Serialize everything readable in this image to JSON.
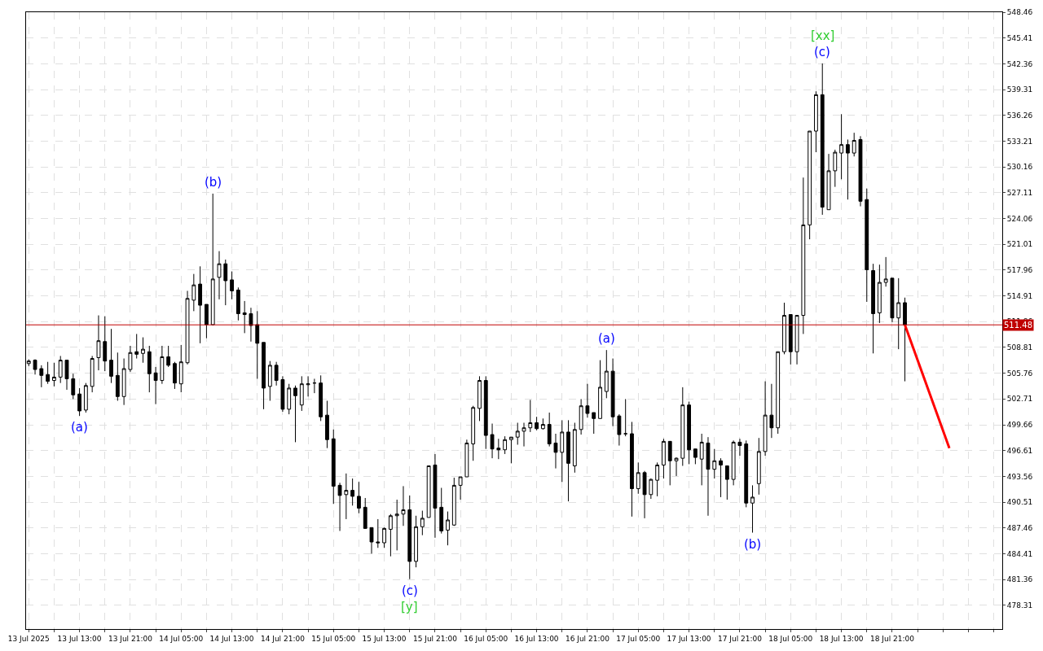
{
  "chart_data": {
    "type": "candlestick",
    "x": [
      "2025-07-13T05:00",
      "2025-07-13T06:00",
      "2025-07-13T07:00",
      "2025-07-13T08:00",
      "2025-07-13T09:00",
      "2025-07-13T10:00",
      "2025-07-13T11:00",
      "2025-07-13T12:00",
      "2025-07-13T13:00",
      "2025-07-13T14:00",
      "2025-07-13T15:00",
      "2025-07-13T16:00",
      "2025-07-13T17:00",
      "2025-07-13T18:00",
      "2025-07-13T19:00",
      "2025-07-13T20:00",
      "2025-07-13T21:00",
      "2025-07-13T22:00",
      "2025-07-13T23:00",
      "2025-07-14T00:00",
      "2025-07-14T01:00",
      "2025-07-14T02:00",
      "2025-07-14T03:00",
      "2025-07-14T04:00",
      "2025-07-14T05:00",
      "2025-07-14T06:00",
      "2025-07-14T07:00",
      "2025-07-14T08:00",
      "2025-07-14T09:00",
      "2025-07-14T10:00",
      "2025-07-14T11:00",
      "2025-07-14T12:00",
      "2025-07-14T13:00",
      "2025-07-14T14:00",
      "2025-07-14T15:00",
      "2025-07-14T16:00",
      "2025-07-14T17:00",
      "2025-07-14T18:00",
      "2025-07-14T19:00",
      "2025-07-14T20:00",
      "2025-07-14T21:00",
      "2025-07-14T22:00",
      "2025-07-14T23:00",
      "2025-07-15T00:00",
      "2025-07-15T01:00",
      "2025-07-15T02:00",
      "2025-07-15T03:00",
      "2025-07-15T04:00",
      "2025-07-15T05:00",
      "2025-07-15T06:00",
      "2025-07-15T07:00",
      "2025-07-15T08:00",
      "2025-07-15T09:00",
      "2025-07-15T10:00",
      "2025-07-15T11:00",
      "2025-07-15T12:00",
      "2025-07-15T13:00",
      "2025-07-15T14:00",
      "2025-07-15T15:00",
      "2025-07-15T16:00",
      "2025-07-15T17:00",
      "2025-07-15T18:00",
      "2025-07-15T19:00",
      "2025-07-15T20:00",
      "2025-07-15T21:00",
      "2025-07-15T22:00",
      "2025-07-15T23:00",
      "2025-07-16T00:00",
      "2025-07-16T01:00",
      "2025-07-16T02:00",
      "2025-07-16T03:00",
      "2025-07-16T04:00",
      "2025-07-16T05:00",
      "2025-07-16T06:00",
      "2025-07-16T07:00",
      "2025-07-16T08:00",
      "2025-07-16T09:00",
      "2025-07-16T10:00",
      "2025-07-16T11:00",
      "2025-07-16T12:00",
      "2025-07-16T13:00",
      "2025-07-16T14:00",
      "2025-07-16T15:00",
      "2025-07-16T16:00",
      "2025-07-16T17:00",
      "2025-07-16T18:00",
      "2025-07-16T19:00",
      "2025-07-16T20:00",
      "2025-07-16T21:00",
      "2025-07-16T22:00",
      "2025-07-16T23:00",
      "2025-07-17T00:00",
      "2025-07-17T01:00",
      "2025-07-17T02:00",
      "2025-07-17T03:00",
      "2025-07-17T04:00",
      "2025-07-17T05:00",
      "2025-07-17T06:00",
      "2025-07-17T07:00",
      "2025-07-17T08:00",
      "2025-07-17T09:00",
      "2025-07-17T10:00",
      "2025-07-17T11:00",
      "2025-07-17T12:00",
      "2025-07-17T13:00",
      "2025-07-17T14:00",
      "2025-07-17T15:00",
      "2025-07-17T16:00",
      "2025-07-17T17:00",
      "2025-07-17T18:00",
      "2025-07-17T19:00",
      "2025-07-17T20:00",
      "2025-07-17T21:00",
      "2025-07-17T22:00",
      "2025-07-17T23:00",
      "2025-07-18T00:00",
      "2025-07-18T01:00",
      "2025-07-18T02:00",
      "2025-07-18T03:00",
      "2025-07-18T04:00",
      "2025-07-18T05:00",
      "2025-07-18T06:00",
      "2025-07-18T07:00",
      "2025-07-18T08:00",
      "2025-07-18T09:00",
      "2025-07-18T10:00",
      "2025-07-18T11:00",
      "2025-07-18T12:00",
      "2025-07-18T13:00",
      "2025-07-18T14:00",
      "2025-07-18T15:00",
      "2025-07-18T16:00",
      "2025-07-18T17:00",
      "2025-07-18T18:00",
      "2025-07-18T19:00",
      "2025-07-18T20:00",
      "2025-07-18T21:00",
      "2025-07-18T22:00",
      "2025-07-18T23:00"
    ],
    "ohlc": [
      [
        506.9,
        507.4,
        506.6,
        507.2
      ],
      [
        507.3,
        507.4,
        505.6,
        506.2
      ],
      [
        506.3,
        506.7,
        504.1,
        505.5
      ],
      [
        505.6,
        507.1,
        504.5,
        504.8
      ],
      [
        504.9,
        507.0,
        504.2,
        505.3
      ],
      [
        505.3,
        507.8,
        504.6,
        507.3
      ],
      [
        507.3,
        507.3,
        503.8,
        505.1
      ],
      [
        505.1,
        505.7,
        502.7,
        503.2
      ],
      [
        503.3,
        504.0,
        500.7,
        501.3
      ],
      [
        501.4,
        504.6,
        501.1,
        504.3
      ],
      [
        504.2,
        507.8,
        503.5,
        507.5
      ],
      [
        507.6,
        512.6,
        506.1,
        509.6
      ],
      [
        509.5,
        512.5,
        506.0,
        507.2
      ],
      [
        507.3,
        511.0,
        504.6,
        505.4
      ],
      [
        505.5,
        508.2,
        502.5,
        503.0
      ],
      [
        503.0,
        507.5,
        502.0,
        506.3
      ],
      [
        506.2,
        509.0,
        505.9,
        508.2
      ],
      [
        508.3,
        510.4,
        507.5,
        508.0
      ],
      [
        508.1,
        510.0,
        507.0,
        508.6
      ],
      [
        508.3,
        509.0,
        503.5,
        505.7
      ],
      [
        505.8,
        506.5,
        502.1,
        504.9
      ],
      [
        504.9,
        509.0,
        504.5,
        507.7
      ],
      [
        507.7,
        509.0,
        506.5,
        506.7
      ],
      [
        506.9,
        507.1,
        503.9,
        504.6
      ],
      [
        504.5,
        509.1,
        503.5,
        507.1
      ],
      [
        507.0,
        515.5,
        506.8,
        514.6
      ],
      [
        514.4,
        517.5,
        513.1,
        516.2
      ],
      [
        516.3,
        518.4,
        509.3,
        513.8
      ],
      [
        513.9,
        513.9,
        509.9,
        511.5
      ],
      [
        511.5,
        527.0,
        511.4,
        516.9
      ],
      [
        517.1,
        520.2,
        514.5,
        518.7
      ],
      [
        518.7,
        519.2,
        513.8,
        516.7
      ],
      [
        516.8,
        517.8,
        514.5,
        515.5
      ],
      [
        515.6,
        515.9,
        512.0,
        512.8
      ],
      [
        512.9,
        514.3,
        510.5,
        512.7
      ],
      [
        512.8,
        513.5,
        509.5,
        511.4
      ],
      [
        511.5,
        513.1,
        505.1,
        509.3
      ],
      [
        509.4,
        509.4,
        501.5,
        504.0
      ],
      [
        504.2,
        507.2,
        502.5,
        506.7
      ],
      [
        506.7,
        507.1,
        504.3,
        504.9
      ],
      [
        505.0,
        505.4,
        501.2,
        501.5
      ],
      [
        501.5,
        504.5,
        500.9,
        504.0
      ],
      [
        504.0,
        504.3,
        497.6,
        503.1
      ],
      [
        502.0,
        505.4,
        501.3,
        504.5
      ],
      [
        504.4,
        505.4,
        503.0,
        504.5
      ],
      [
        504.6,
        505.1,
        503.4,
        504.6
      ],
      [
        504.6,
        505.5,
        500.1,
        500.6
      ],
      [
        500.8,
        502.5,
        496.9,
        497.9
      ],
      [
        498.0,
        499.1,
        490.3,
        492.4
      ],
      [
        492.5,
        492.8,
        487.1,
        491.3
      ],
      [
        491.4,
        493.9,
        488.5,
        491.9
      ],
      [
        491.9,
        493.3,
        490.1,
        491.2
      ],
      [
        491.2,
        492.9,
        489.2,
        489.8
      ],
      [
        489.9,
        491.0,
        487.4,
        487.4
      ],
      [
        487.5,
        487.5,
        484.4,
        485.8
      ],
      [
        485.8,
        488.5,
        485.1,
        485.7
      ],
      [
        485.7,
        487.5,
        485.1,
        487.4
      ],
      [
        487.3,
        489.1,
        484.1,
        488.9
      ],
      [
        488.9,
        490.8,
        484.8,
        489.1
      ],
      [
        489.1,
        492.4,
        487.7,
        489.6
      ],
      [
        489.6,
        491.3,
        481.4,
        483.5
      ],
      [
        483.5,
        488.9,
        482.8,
        487.6
      ],
      [
        487.6,
        489.5,
        486.6,
        488.6
      ],
      [
        488.7,
        494.8,
        488.7,
        494.8
      ],
      [
        494.9,
        496.2,
        486.3,
        489.8
      ],
      [
        489.9,
        492.2,
        486.8,
        487.1
      ],
      [
        487.2,
        489.4,
        485.4,
        488.4
      ],
      [
        487.8,
        493.4,
        487.7,
        492.5
      ],
      [
        492.5,
        493.5,
        490.8,
        493.5
      ],
      [
        493.5,
        497.9,
        493.5,
        497.5
      ],
      [
        497.4,
        501.9,
        495.4,
        501.7
      ],
      [
        501.6,
        505.4,
        500.1,
        504.9
      ],
      [
        504.9,
        505.4,
        496.8,
        498.4
      ],
      [
        498.5,
        499.8,
        495.7,
        496.8
      ],
      [
        496.9,
        498.0,
        495.6,
        496.7
      ],
      [
        496.7,
        498.3,
        496.2,
        497.9
      ],
      [
        497.9,
        498.2,
        495.1,
        498.2
      ],
      [
        498.2,
        499.9,
        497.3,
        498.9
      ],
      [
        498.9,
        499.9,
        497.1,
        499.3
      ],
      [
        499.3,
        502.6,
        498.8,
        499.9
      ],
      [
        499.9,
        500.6,
        499.0,
        499.2
      ],
      [
        499.2,
        500.4,
        499.1,
        499.7
      ],
      [
        499.7,
        501.1,
        497.1,
        497.4
      ],
      [
        497.5,
        498.6,
        494.5,
        496.4
      ],
      [
        496.4,
        500.2,
        492.9,
        498.8
      ],
      [
        498.8,
        500.2,
        490.6,
        495.1
      ],
      [
        494.8,
        499.9,
        494.0,
        499.1
      ],
      [
        499.1,
        502.7,
        498.5,
        501.9
      ],
      [
        501.9,
        504.5,
        500.5,
        501.0
      ],
      [
        501.1,
        501.1,
        498.6,
        500.4
      ],
      [
        500.4,
        507.3,
        500.4,
        504.1
      ],
      [
        503.6,
        508.5,
        502.8,
        506.0
      ],
      [
        506.0,
        507.5,
        499.5,
        500.6
      ],
      [
        500.7,
        500.9,
        497.2,
        498.5
      ],
      [
        498.6,
        502.7,
        498.3,
        498.6
      ],
      [
        498.6,
        500.0,
        488.8,
        492.1
      ],
      [
        492.1,
        495.2,
        491.5,
        494.0
      ],
      [
        494.0,
        494.2,
        488.6,
        491.4
      ],
      [
        491.4,
        493.3,
        490.9,
        493.2
      ],
      [
        493.1,
        495.2,
        491.2,
        494.9
      ],
      [
        494.9,
        498.0,
        493.3,
        497.7
      ],
      [
        497.7,
        497.7,
        492.5,
        495.4
      ],
      [
        495.4,
        495.8,
        493.6,
        495.7
      ],
      [
        495.7,
        504.1,
        494.8,
        502.0
      ],
      [
        502.0,
        502.4,
        495.0,
        496.7
      ],
      [
        496.8,
        496.8,
        495.0,
        495.8
      ],
      [
        495.6,
        498.6,
        492.5,
        497.6
      ],
      [
        497.5,
        498.2,
        488.9,
        494.4
      ],
      [
        494.4,
        496.8,
        493.3,
        495.4
      ],
      [
        495.4,
        495.7,
        491.1,
        494.9
      ],
      [
        494.8,
        494.8,
        490.8,
        493.2
      ],
      [
        493.2,
        497.8,
        492.5,
        497.6
      ],
      [
        497.6,
        498.0,
        496.0,
        497.2
      ],
      [
        497.4,
        497.8,
        489.9,
        490.4
      ],
      [
        490.4,
        492.5,
        486.9,
        491.1
      ],
      [
        492.7,
        498.1,
        491.4,
        496.5
      ],
      [
        496.5,
        504.8,
        496.0,
        500.8
      ],
      [
        500.8,
        504.5,
        498.1,
        499.3
      ],
      [
        499.3,
        508.3,
        498.6,
        508.3
      ],
      [
        508.3,
        514.1,
        508.0,
        512.6
      ],
      [
        512.7,
        512.7,
        506.8,
        508.3
      ],
      [
        508.3,
        512.6,
        506.8,
        512.6
      ],
      [
        512.6,
        528.9,
        510.4,
        523.3
      ],
      [
        523.3,
        534.4,
        521.6,
        534.4
      ],
      [
        534.4,
        539.1,
        531.9,
        538.7
      ],
      [
        538.7,
        542.4,
        524.5,
        525.4
      ],
      [
        525.1,
        531.7,
        525.1,
        529.7
      ],
      [
        529.7,
        532.2,
        527.8,
        531.9
      ],
      [
        531.8,
        536.4,
        528.7,
        532.8
      ],
      [
        532.8,
        533.4,
        526.3,
        531.8
      ],
      [
        531.8,
        534.2,
        531.4,
        533.3
      ],
      [
        533.4,
        533.8,
        525.5,
        526.1
      ],
      [
        526.3,
        527.6,
        514.2,
        518.0
      ],
      [
        517.9,
        518.7,
        508.1,
        512.8
      ],
      [
        512.9,
        518.6,
        511.7,
        516.5
      ],
      [
        516.5,
        519.5,
        516.0,
        516.9
      ],
      [
        517.0,
        517.0,
        511.8,
        512.3
      ],
      [
        512.3,
        517.0,
        508.6,
        514.1
      ],
      [
        514.1,
        514.7,
        504.8,
        511.48
      ]
    ],
    "series": [
      {
        "type": "line",
        "color": "#ff0000",
        "x": [
          "2025-07-18T23:00",
          "2025-07-19T06:00"
        ],
        "values": [
          511.48,
          496.9
        ]
      }
    ],
    "ylim": [
      475.5,
      548.46
    ],
    "yticks": [
      478.31,
      481.36,
      484.41,
      487.46,
      490.51,
      493.56,
      496.61,
      499.66,
      502.71,
      505.76,
      508.81,
      511.86,
      514.91,
      517.96,
      521.01,
      524.06,
      527.11,
      530.16,
      533.21,
      536.26,
      539.31,
      542.36,
      545.41,
      548.46
    ],
    "xlim": [
      "2025-07-13T04:35",
      "2025-07-19T14:20"
    ],
    "xticks": [
      {
        "value": "2025-07-13T05:00",
        "label": "13 Jul 2025"
      },
      {
        "value": "2025-07-13T09:00",
        "label": null
      },
      {
        "value": "2025-07-13T13:00",
        "label": "13 Jul 13:00"
      },
      {
        "value": "2025-07-13T17:00",
        "label": null
      },
      {
        "value": "2025-07-13T21:00",
        "label": "13 Jul 21:00"
      },
      {
        "value": "2025-07-14T01:00",
        "label": null
      },
      {
        "value": "2025-07-14T05:00",
        "label": "14 Jul 05:00"
      },
      {
        "value": "2025-07-14T09:00",
        "label": null
      },
      {
        "value": "2025-07-14T13:00",
        "label": "14 Jul 13:00"
      },
      {
        "value": "2025-07-14T17:00",
        "label": null
      },
      {
        "value": "2025-07-14T21:00",
        "label": "14 Jul 21:00"
      },
      {
        "value": "2025-07-15T01:00",
        "label": null
      },
      {
        "value": "2025-07-15T05:00",
        "label": "15 Jul 05:00"
      },
      {
        "value": "2025-07-15T09:00",
        "label": null
      },
      {
        "value": "2025-07-15T13:00",
        "label": "15 Jul 13:00"
      },
      {
        "value": "2025-07-15T17:00",
        "label": null
      },
      {
        "value": "2025-07-15T21:00",
        "label": "15 Jul 21:00"
      },
      {
        "value": "2025-07-16T01:00",
        "label": null
      },
      {
        "value": "2025-07-16T05:00",
        "label": "16 Jul 05:00"
      },
      {
        "value": "2025-07-16T09:00",
        "label": null
      },
      {
        "value": "2025-07-16T13:00",
        "label": "16 Jul 13:00"
      },
      {
        "value": "2025-07-16T17:00",
        "label": null
      },
      {
        "value": "2025-07-16T21:00",
        "label": "16 Jul 21:00"
      },
      {
        "value": "2025-07-17T01:00",
        "label": null
      },
      {
        "value": "2025-07-17T05:00",
        "label": "17 Jul 05:00"
      },
      {
        "value": "2025-07-17T09:00",
        "label": null
      },
      {
        "value": "2025-07-17T13:00",
        "label": "17 Jul 13:00"
      },
      {
        "value": "2025-07-17T17:00",
        "label": null
      },
      {
        "value": "2025-07-17T21:00",
        "label": "17 Jul 21:00"
      },
      {
        "value": "2025-07-18T01:00",
        "label": null
      },
      {
        "value": "2025-07-18T05:00",
        "label": "18 Jul 05:00"
      },
      {
        "value": "2025-07-18T09:00",
        "label": null
      },
      {
        "value": "2025-07-18T13:00",
        "label": "18 Jul 13:00"
      },
      {
        "value": "2025-07-18T17:00",
        "label": null
      },
      {
        "value": "2025-07-18T21:00",
        "label": "18 Jul 21:00"
      },
      {
        "value": "2025-07-19T01:00",
        "label": null
      },
      {
        "value": "2025-07-19T05:00",
        "label": null
      },
      {
        "value": "2025-07-19T09:00",
        "label": null
      },
      {
        "value": "2025-07-19T13:00",
        "label": null
      }
    ],
    "grid": true,
    "ref_lines": [
      {
        "axis": "y",
        "value": 511.48,
        "label": "511.48",
        "color": "#c00000"
      }
    ],
    "annotations": [
      {
        "text": "(a)",
        "x": "2025-07-13T13:00",
        "y": 500.7
      },
      {
        "text": "(b)",
        "x": "2025-07-14T10:00",
        "y": 527.0
      },
      {
        "text": "(c)",
        "x": "2025-07-15T17:00",
        "y": 481.4
      },
      {
        "text": "[y]",
        "x": "2025-07-15T17:00",
        "y": 481.4
      },
      {
        "text": "(a)",
        "x": "2025-07-17T00:00",
        "y": 508.5
      },
      {
        "text": "(b)",
        "x": "2025-07-17T23:00",
        "y": 486.9
      },
      {
        "text": "(c)",
        "x": "2025-07-18T10:00",
        "y": 542.4
      },
      {
        "text": "[xx]",
        "x": "2025-07-18T10:00",
        "y": 542.4
      }
    ]
  }
}
